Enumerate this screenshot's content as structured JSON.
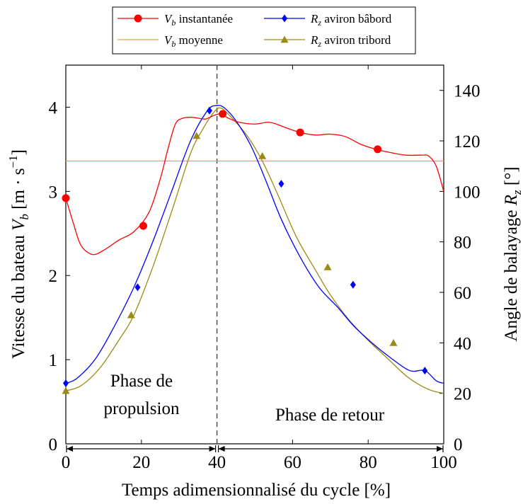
{
  "chart_data": {
    "type": "line",
    "xlabel": "Temps adimensionnalisé du cycle [%]",
    "ylabel_left": "Vitesse du bateau V_b [m·s⁻¹]",
    "ylabel_right": "Angle de balayage R_z [°]",
    "xlim": [
      0,
      100
    ],
    "ylim_left": [
      0,
      4.5
    ],
    "ylim_right": [
      0,
      150
    ],
    "x_ticks": [
      0,
      20,
      40,
      60,
      80,
      100
    ],
    "y_left_ticks": [
      0,
      1,
      2,
      3,
      4
    ],
    "y_right_ticks": [
      0,
      20,
      40,
      60,
      80,
      100,
      120,
      140
    ],
    "grid": false,
    "legend_position": "top",
    "divider_x": 40,
    "series": [
      {
        "name": "V_b instantanée",
        "axis": "left",
        "color": "#ff0000",
        "marker": "circle",
        "x": [
          0,
          2,
          4,
          7,
          10,
          14,
          18,
          22,
          25,
          27,
          29,
          31,
          33,
          35,
          37,
          39,
          41,
          43,
          46,
          50,
          54,
          58,
          62,
          66,
          70,
          74,
          78,
          82,
          86,
          90,
          94,
          96,
          98,
          100
        ],
        "values": [
          2.92,
          2.62,
          2.36,
          2.25,
          2.3,
          2.42,
          2.52,
          2.75,
          3.15,
          3.5,
          3.8,
          3.87,
          3.88,
          3.87,
          3.86,
          3.9,
          3.92,
          3.87,
          3.82,
          3.8,
          3.82,
          3.76,
          3.7,
          3.67,
          3.68,
          3.65,
          3.56,
          3.5,
          3.46,
          3.43,
          3.43,
          3.42,
          3.3,
          3.0
        ],
        "marker_x": [
          0,
          20.5,
          41.5,
          62,
          82.5
        ],
        "marker_values": [
          2.92,
          2.59,
          3.92,
          3.7,
          3.5
        ]
      },
      {
        "name": "V_b moyenne",
        "axis": "left",
        "color": "#e8a33c",
        "marker": "none",
        "x": [
          0,
          100
        ],
        "values": [
          3.36,
          3.36
        ]
      },
      {
        "name": "R_z aviron bâbord",
        "axis": "right",
        "color": "#0000ff",
        "marker": "diamond",
        "x": [
          0,
          3,
          8,
          13,
          18,
          23,
          28,
          33,
          37.5,
          40,
          42,
          45,
          49,
          53,
          57,
          62,
          67,
          72,
          76,
          81,
          86,
          91,
          95,
          98,
          100
        ],
        "values": [
          24,
          26,
          34,
          47,
          62,
          80,
          100,
          120,
          132,
          134,
          133,
          128,
          118,
          104,
          89,
          74,
          62,
          54,
          47,
          40,
          34,
          29,
          29,
          25,
          24
        ],
        "marker_x": [
          0,
          19,
          38,
          57,
          76,
          95
        ],
        "marker_values": [
          24,
          62,
          132,
          103,
          63,
          29
        ]
      },
      {
        "name": "R_z aviron tribord",
        "axis": "right",
        "color": "#9b8a14",
        "marker": "triangle",
        "x": [
          0,
          4,
          9,
          14,
          18,
          23,
          28,
          33,
          36,
          39,
          41,
          44,
          48,
          52,
          56,
          61,
          66,
          70,
          75,
          80,
          85,
          90,
          94,
          97,
          100
        ],
        "values": [
          21,
          23,
          30,
          41,
          51,
          70,
          92,
          115,
          124,
          131,
          133,
          129,
          122,
          112,
          99,
          82,
          69,
          59,
          49,
          41,
          34,
          27,
          23,
          21,
          20
        ],
        "marker_x": [
          0,
          17.3,
          34.6,
          52,
          69.3,
          86.7
        ],
        "marker_values": [
          21,
          51,
          122,
          114,
          70,
          40
        ]
      }
    ],
    "legend": [
      {
        "label": "V_b instantanée",
        "sub": "b",
        "main": "V",
        "rest": " instantanée"
      },
      {
        "label": "R_z aviron bâbord",
        "sub": "z",
        "main": "R",
        "rest": " aviron bâbord"
      },
      {
        "label": "V_b moyenne",
        "sub": "b",
        "main": "V",
        "rest": " moyenne"
      },
      {
        "label": "R_z aviron tribord",
        "sub": "z",
        "main": "R",
        "rest": " aviron tribord"
      }
    ],
    "annotations": {
      "phase_propulsion_line1": "Phase de",
      "phase_propulsion_line2": "propulsion",
      "phase_retour": "Phase de retour"
    }
  }
}
